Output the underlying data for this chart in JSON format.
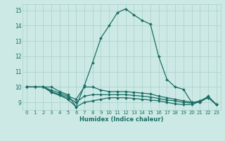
{
  "xlabel": "Humidex (Indice chaleur)",
  "ylabel": "",
  "background_color": "#cce9e5",
  "line_color": "#1a6e65",
  "grid_color": "#aacfca",
  "xlim": [
    -0.5,
    23.5
  ],
  "ylim": [
    8.5,
    15.4
  ],
  "xticks": [
    0,
    1,
    2,
    3,
    4,
    5,
    6,
    7,
    8,
    9,
    10,
    11,
    12,
    13,
    14,
    15,
    16,
    17,
    18,
    19,
    20,
    21,
    22,
    23
  ],
  "yticks": [
    9,
    10,
    11,
    12,
    13,
    14,
    15
  ],
  "lines": [
    {
      "x": [
        0,
        1,
        2,
        3,
        4,
        5,
        6,
        7,
        8,
        9,
        10,
        11,
        12,
        13,
        14,
        15,
        16,
        17,
        18,
        19,
        20,
        21,
        22,
        23
      ],
      "y": [
        10,
        10,
        10,
        10,
        9.7,
        9.5,
        8.7,
        10.1,
        11.6,
        13.2,
        14.0,
        14.85,
        15.1,
        14.7,
        14.35,
        14.1,
        12.0,
        10.5,
        10.0,
        9.85,
        9.0,
        9.0,
        9.4,
        8.85
      ]
    },
    {
      "x": [
        0,
        1,
        2,
        3,
        4,
        5,
        6,
        7,
        8,
        9,
        10,
        11,
        12,
        13,
        14,
        15,
        16,
        17,
        18,
        19,
        20,
        21,
        22,
        23
      ],
      "y": [
        10,
        10,
        10,
        9.8,
        9.6,
        9.4,
        9.2,
        10.0,
        10.0,
        9.8,
        9.7,
        9.7,
        9.7,
        9.65,
        9.6,
        9.55,
        9.4,
        9.3,
        9.2,
        9.1,
        9.0,
        9.0,
        9.35,
        8.85
      ]
    },
    {
      "x": [
        0,
        1,
        2,
        3,
        4,
        5,
        6,
        7,
        8,
        9,
        10,
        11,
        12,
        13,
        14,
        15,
        16,
        17,
        18,
        19,
        20,
        21,
        22,
        23
      ],
      "y": [
        10,
        10,
        10,
        9.7,
        9.5,
        9.3,
        9.0,
        9.4,
        9.5,
        9.5,
        9.5,
        9.5,
        9.5,
        9.45,
        9.4,
        9.35,
        9.25,
        9.15,
        9.1,
        9.0,
        8.95,
        9.1,
        9.35,
        8.85
      ]
    },
    {
      "x": [
        0,
        1,
        2,
        3,
        4,
        5,
        6,
        7,
        8,
        9,
        10,
        11,
        12,
        13,
        14,
        15,
        16,
        17,
        18,
        19,
        20,
        21,
        22,
        23
      ],
      "y": [
        10,
        10,
        10,
        9.65,
        9.45,
        9.2,
        8.7,
        9.0,
        9.1,
        9.2,
        9.3,
        9.3,
        9.3,
        9.25,
        9.2,
        9.15,
        9.1,
        9.0,
        8.9,
        8.85,
        8.85,
        9.05,
        9.3,
        8.85
      ]
    }
  ]
}
